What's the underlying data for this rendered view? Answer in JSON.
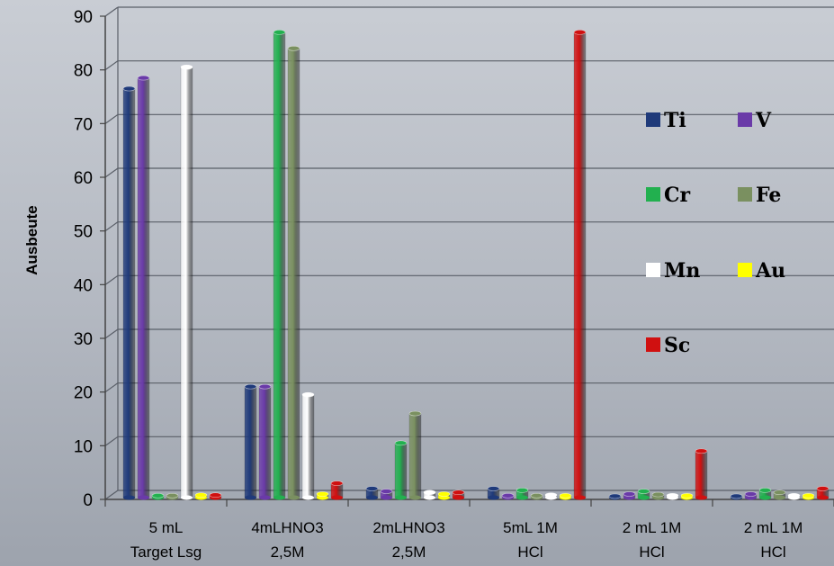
{
  "chart_data": {
    "type": "bar",
    "ylabel": "Ausbeute",
    "ylim": [
      0,
      90
    ],
    "yticks": [
      0,
      10,
      20,
      30,
      40,
      50,
      60,
      70,
      80,
      90
    ],
    "categories": [
      [
        "5 mL",
        "Target Lsg"
      ],
      [
        "4mLHNO3",
        "2,5M"
      ],
      [
        "2mLHNO3",
        "2,5M"
      ],
      [
        "5mL 1M",
        "HCl"
      ],
      [
        "2 mL 1M",
        "HCl"
      ],
      [
        "2 mL 1M",
        "HCl"
      ]
    ],
    "series": [
      {
        "name": "Ti",
        "color": "#1f3a7a",
        "values": [
          76,
          20.5,
          1.5,
          1.5,
          0.1,
          0.1
        ]
      },
      {
        "name": "V",
        "color": "#6a3aa8",
        "values": [
          78,
          20.5,
          1.0,
          0.2,
          0.5,
          0.5
        ]
      },
      {
        "name": "Cr",
        "color": "#22b04f",
        "values": [
          0.2,
          86.5,
          10,
          1.2,
          1.0,
          1.2
        ]
      },
      {
        "name": "Fe",
        "color": "#7a9060",
        "values": [
          0.2,
          83.5,
          15.5,
          0.2,
          0.4,
          0.8
        ]
      },
      {
        "name": "Mn",
        "color": "#ffffff",
        "values": [
          80,
          19,
          0.8,
          0.3,
          0.2,
          0.2
        ]
      },
      {
        "name": "Au",
        "color": "#ffff00",
        "values": [
          0.3,
          0.5,
          0.5,
          0.2,
          0.2,
          0.2
        ]
      },
      {
        "name": "Sc",
        "color": "#d01010",
        "values": [
          0.3,
          2.5,
          0.8,
          86.5,
          8.5,
          1.5
        ]
      }
    ],
    "grid": true,
    "legend_position": "right"
  }
}
